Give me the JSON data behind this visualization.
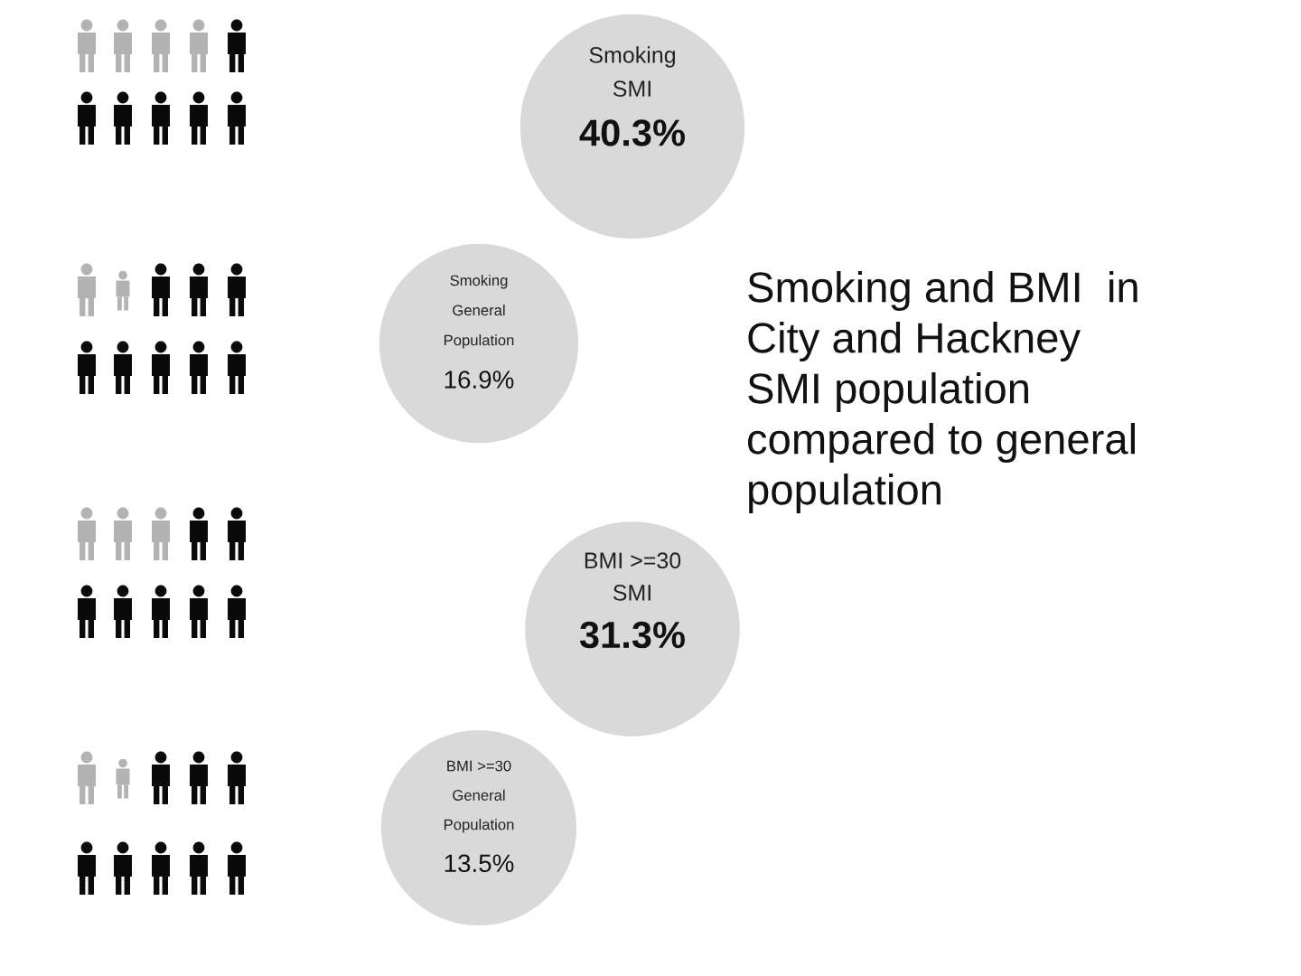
{
  "chart_data": {
    "type": "other",
    "title": "Smoking and BMI  in\nCity and Hackney\nSMI population\ncompared to general\npopulation",
    "categories": [
      "Smoking\nSMI",
      "Smoking\nGeneral\nPopulation",
      "BMI >=30\nSMI",
      "BMI >=30\nGeneral\nPopulation"
    ],
    "values": [
      40.3,
      16.9,
      31.3,
      13.5
    ],
    "value_labels": [
      "40.3%",
      "16.9%",
      "31.3%",
      "13.5%"
    ],
    "color": "#d9d9d9"
  }
}
